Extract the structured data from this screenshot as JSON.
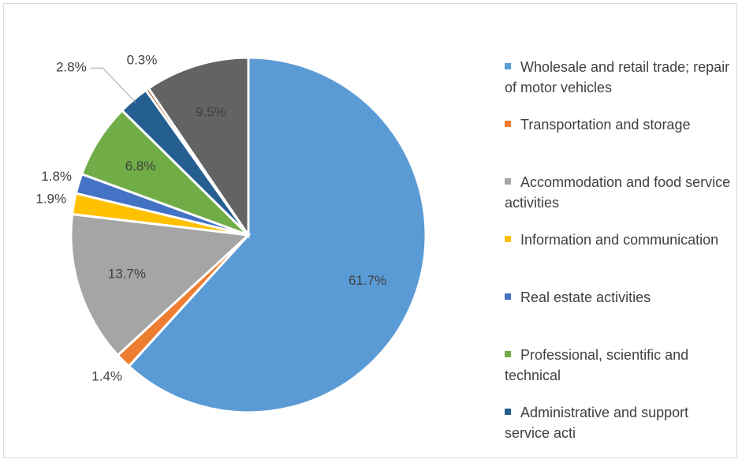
{
  "chart_data": {
    "type": "pie",
    "categories": [
      "Wholesale and retail trade; repair of motor vehicles",
      "Transportation and storage",
      "Accommodation and food service activities",
      "Information and communication",
      "Real estate activities",
      "Professional, scientific and technical",
      "Administrative and support service acti",
      null,
      null
    ],
    "values": [
      61.7,
      1.4,
      13.7,
      1.9,
      1.8,
      6.8,
      2.8,
      0.3,
      9.5
    ],
    "value_labels": [
      "61.7%",
      "1.4%",
      "13.7%",
      "1.9%",
      "1.8%",
      "6.8%",
      "2.8%",
      "0.3%",
      "9.5%"
    ],
    "colors": [
      "#5b9bd5",
      "#ed7d31",
      "#a5a5a5",
      "#ffc000",
      "#4472c4",
      "#70ad47",
      "#255e91",
      "#9e480e",
      "#636363"
    ],
    "legend": "right"
  }
}
